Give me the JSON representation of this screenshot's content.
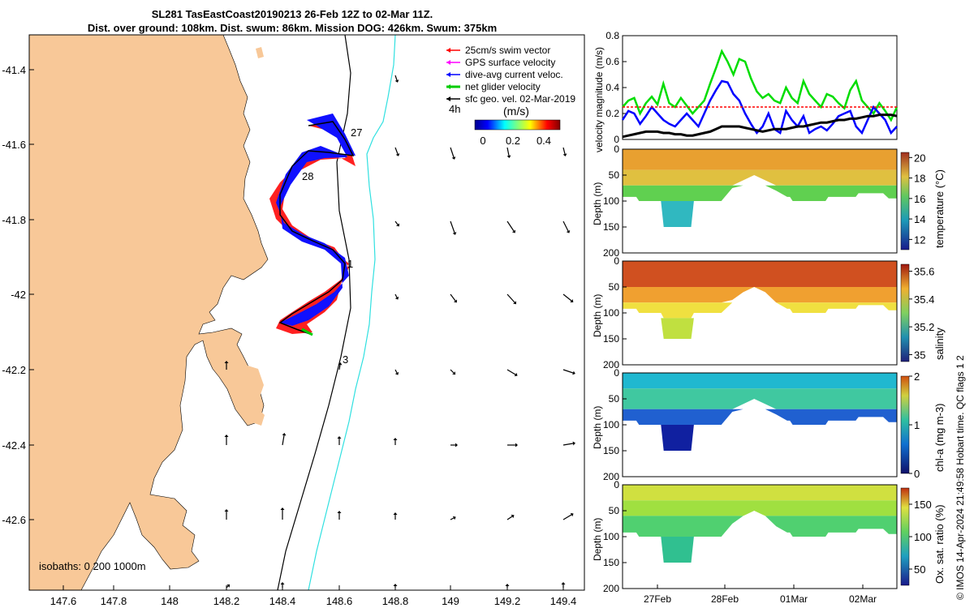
{
  "header": {
    "title_line1": "SL281 TasEastCoast20190213 26-Feb 12Z to 02-Mar 11Z.",
    "title_line2": "Dist. over ground: 108km. Dist. swum: 86km. Mission DOG: 426km. Swum: 375km"
  },
  "map": {
    "x_ticks": [
      "147.6",
      "147.8",
      "148",
      "148.2",
      "148.4",
      "148.6",
      "148.8",
      "149",
      "149.2",
      "149.4"
    ],
    "y_ticks": [
      "-41.4",
      "-41.6",
      "-41.8",
      "-42",
      "-42.2",
      "-42.4",
      "-42.6"
    ],
    "legend": [
      {
        "label": "25cm/s swim vector",
        "color": "#ff0000"
      },
      {
        "label": "GPS surface velocity",
        "color": "#ff00ff"
      },
      {
        "label": "dive-avg current veloc.",
        "color": "#0000ff"
      },
      {
        "label": "net glider velocity",
        "color": "#00cc00"
      },
      {
        "label": "sfc geo. vel. 02-Mar-2019",
        "color": "#000000"
      }
    ],
    "colorbar_label": "(m/s)",
    "colorbar_ticks": [
      "0",
      "0.2",
      "0.4"
    ],
    "time_label": "4h",
    "day_labels": [
      "27",
      "28",
      "1",
      "3"
    ],
    "isobaths_label": "isobaths: 0   200  1000m",
    "land_color": "#f8c898"
  },
  "chart_data": [
    {
      "type": "line",
      "ylabel": "velocity magnitude (m/s)",
      "ylim": [
        0,
        0.8
      ],
      "y_ticks": [
        "0",
        "0.2",
        "0.4",
        "0.6",
        "0.8"
      ],
      "series": [
        {
          "name": "net glider velocity",
          "color": "#00dd00",
          "values": [
            0.25,
            0.3,
            0.32,
            0.2,
            0.28,
            0.33,
            0.27,
            0.43,
            0.28,
            0.25,
            0.32,
            0.26,
            0.2,
            0.25,
            0.3,
            0.43,
            0.55,
            0.68,
            0.6,
            0.5,
            0.62,
            0.6,
            0.47,
            0.37,
            0.32,
            0.35,
            0.3,
            0.28,
            0.4,
            0.32,
            0.28,
            0.45,
            0.35,
            0.3,
            0.25,
            0.35,
            0.33,
            0.28,
            0.24,
            0.38,
            0.45,
            0.3,
            0.25,
            0.2,
            0.28,
            0.22,
            0.15,
            0.25
          ]
        },
        {
          "name": "dive-avg current veloc.",
          "color": "#0000ff",
          "values": [
            0.15,
            0.22,
            0.2,
            0.12,
            0.18,
            0.25,
            0.2,
            0.15,
            0.12,
            0.1,
            0.15,
            0.2,
            0.15,
            0.1,
            0.2,
            0.3,
            0.38,
            0.45,
            0.44,
            0.35,
            0.3,
            0.2,
            0.12,
            0.05,
            0.1,
            0.2,
            0.08,
            0.05,
            0.22,
            0.15,
            0.1,
            0.18,
            0.05,
            0.08,
            0.1,
            0.07,
            0.12,
            0.18,
            0.2,
            0.22,
            0.1,
            0.05,
            0.15,
            0.25,
            0.2,
            0.15,
            0.05,
            0.1
          ]
        },
        {
          "name": "sfc geo. vel.",
          "color": "#000000",
          "values": [
            0.02,
            0.03,
            0.04,
            0.05,
            0.06,
            0.06,
            0.06,
            0.05,
            0.05,
            0.04,
            0.04,
            0.03,
            0.03,
            0.04,
            0.05,
            0.06,
            0.08,
            0.1,
            0.1,
            0.1,
            0.1,
            0.09,
            0.08,
            0.07,
            0.06,
            0.07,
            0.08,
            0.08,
            0.08,
            0.09,
            0.1,
            0.1,
            0.11,
            0.12,
            0.13,
            0.13,
            0.14,
            0.15,
            0.15,
            0.16,
            0.16,
            0.17,
            0.18,
            0.18,
            0.19,
            0.19,
            0.19,
            0.18
          ]
        },
        {
          "name": "25cm/s swim vector",
          "color": "#ff0000",
          "values": [
            0.25,
            0.25,
            0.25,
            0.25,
            0.25,
            0.25
          ]
        }
      ]
    },
    {
      "type": "heatmap",
      "variable": "temperature",
      "ylabel": "Depth (m)",
      "colorbar_label": "temperature (°C)",
      "ylim": [
        0,
        200
      ],
      "y_ticks": [
        "0",
        "50",
        "100",
        "150",
        "200"
      ],
      "cbar_ticks": [
        "20",
        "18",
        "16",
        "14",
        "12"
      ],
      "cbar_range": [
        11,
        20.5
      ],
      "layers": [
        {
          "depth": [
            0,
            40
          ],
          "color": "#e8a030"
        },
        {
          "depth": [
            40,
            70
          ],
          "color": "#e0c040"
        },
        {
          "depth": [
            70,
            100
          ],
          "color": "#60d050"
        },
        {
          "depth": [
            100,
            150
          ],
          "color": "#30b8c0"
        }
      ]
    },
    {
      "type": "heatmap",
      "variable": "salinity",
      "ylabel": "Depth (m)",
      "colorbar_label": "salinity",
      "ylim": [
        0,
        200
      ],
      "y_ticks": [
        "0",
        "50",
        "100",
        "150",
        "200"
      ],
      "cbar_ticks": [
        "35.6",
        "35.4",
        "35.2",
        "35"
      ],
      "cbar_range": [
        34.95,
        35.65
      ],
      "layers": [
        {
          "depth": [
            0,
            50
          ],
          "color": "#d05020"
        },
        {
          "depth": [
            50,
            80
          ],
          "color": "#f0a030"
        },
        {
          "depth": [
            80,
            110
          ],
          "color": "#f0e040"
        },
        {
          "depth": [
            110,
            150
          ],
          "color": "#c0e040"
        }
      ]
    },
    {
      "type": "heatmap",
      "variable": "chl-a",
      "ylabel": "Depth (m)",
      "colorbar_label": "chl-a (mg m-3)",
      "ylim": [
        0,
        200
      ],
      "y_ticks": [
        "0",
        "50",
        "100",
        "150",
        "200"
      ],
      "cbar_ticks": [
        "2",
        "1",
        "0"
      ],
      "cbar_range": [
        0,
        2
      ],
      "layers": [
        {
          "depth": [
            0,
            30
          ],
          "color": "#20b8d0"
        },
        {
          "depth": [
            30,
            70
          ],
          "color": "#40c8a0"
        },
        {
          "depth": [
            70,
            100
          ],
          "color": "#2060d0"
        },
        {
          "depth": [
            100,
            150
          ],
          "color": "#1020a0"
        }
      ]
    },
    {
      "type": "heatmap",
      "variable": "oxygen saturation",
      "ylabel": "Depth (m)",
      "colorbar_label": "Ox. sat. ratio (%)",
      "ylim": [
        0,
        200
      ],
      "y_ticks": [
        "0",
        "50",
        "100",
        "150",
        "200"
      ],
      "cbar_ticks": [
        "150",
        "100",
        "50"
      ],
      "cbar_range": [
        25,
        175
      ],
      "x_ticks": [
        "27Feb",
        "28Feb",
        "01Mar",
        "02Mar"
      ],
      "layers": [
        {
          "depth": [
            0,
            30
          ],
          "color": "#d0e040"
        },
        {
          "depth": [
            30,
            60
          ],
          "color": "#a0e040"
        },
        {
          "depth": [
            60,
            100
          ],
          "color": "#50d070"
        },
        {
          "depth": [
            100,
            150
          ],
          "color": "#30c090"
        }
      ]
    }
  ],
  "copyright": "© IMOS 14-Apr-2024 21:49:58 Hobart time. QC flags 1  2"
}
